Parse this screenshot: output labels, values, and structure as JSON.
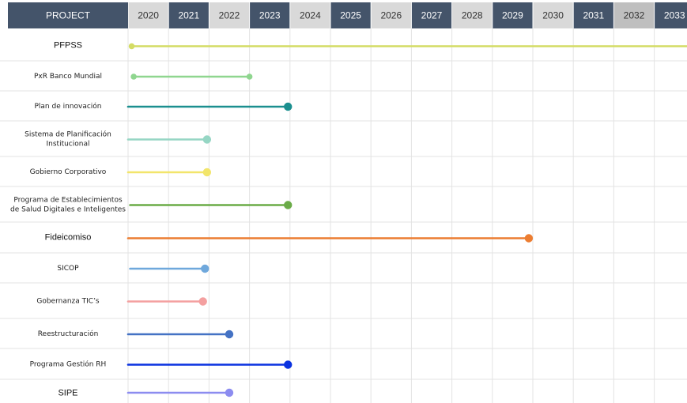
{
  "chart_data": {
    "type": "timeline",
    "header_label": "PROJECT",
    "years": [
      "2020",
      "2021",
      "2022",
      "2023",
      "2024",
      "2025",
      "2026",
      "2027",
      "2028",
      "2029",
      "2030",
      "2031",
      "2032",
      "2033"
    ],
    "header_styles": [
      "light",
      "dark",
      "light",
      "dark",
      "light",
      "dark",
      "light",
      "dark",
      "light",
      "dark",
      "light",
      "dark",
      "mid",
      "dark"
    ],
    "colors": {
      "dark": "#44546a",
      "light": "#d9d9d9",
      "mid": "#bfbfbf"
    },
    "projects": [
      {
        "label": "PFPSS",
        "start": 2020.05,
        "end": 2034.2,
        "color": "#d4dc64",
        "end_marker": false,
        "start_marker": true,
        "big": true
      },
      {
        "label": "PxR Banco Mundial",
        "start": 2020.1,
        "end": 2023.0,
        "color": "#8fd68f",
        "end_marker": true,
        "start_marker": true,
        "small_marker": true
      },
      {
        "label": "Plan de innovación",
        "start": 2020.0,
        "end": 2023.95,
        "color": "#1b8f8f",
        "end_marker": true
      },
      {
        "label": [
          "Sistema de Planificación",
          "Institucional"
        ],
        "start": 2020.0,
        "end": 2021.95,
        "color": "#96d6c4",
        "end_marker": true
      },
      {
        "label": "Gobierno Corporativo",
        "start": 2020.0,
        "end": 2021.95,
        "color": "#f2e56b",
        "end_marker": true
      },
      {
        "label": [
          "Programa de Establecimientos",
          "de Salud Digitales e Inteligentes"
        ],
        "start": 2020.05,
        "end": 2023.95,
        "color": "#6aab47",
        "end_marker": true
      },
      {
        "label": "Fideicomiso",
        "start": 2020.0,
        "end": 2029.9,
        "color": "#ec7d31",
        "end_marker": true,
        "big": true
      },
      {
        "label": "SICOP",
        "start": 2020.05,
        "end": 2021.9,
        "color": "#6fa8dc",
        "end_marker": true
      },
      {
        "label": "Gobernanza TIC’s",
        "start": 2020.0,
        "end": 2021.85,
        "color": "#f4a0a0",
        "end_marker": true
      },
      {
        "label": "Reestructuración",
        "start": 2020.0,
        "end": 2022.5,
        "color": "#4472c4",
        "end_marker": true
      },
      {
        "label": "Programa Gestión RH",
        "start": 2020.0,
        "end": 2023.95,
        "color": "#0a32e0",
        "end_marker": true
      },
      {
        "label": "SIPE",
        "start": 2020.0,
        "end": 2022.5,
        "color": "#8c8cf0",
        "end_marker": true,
        "big": true
      }
    ]
  }
}
